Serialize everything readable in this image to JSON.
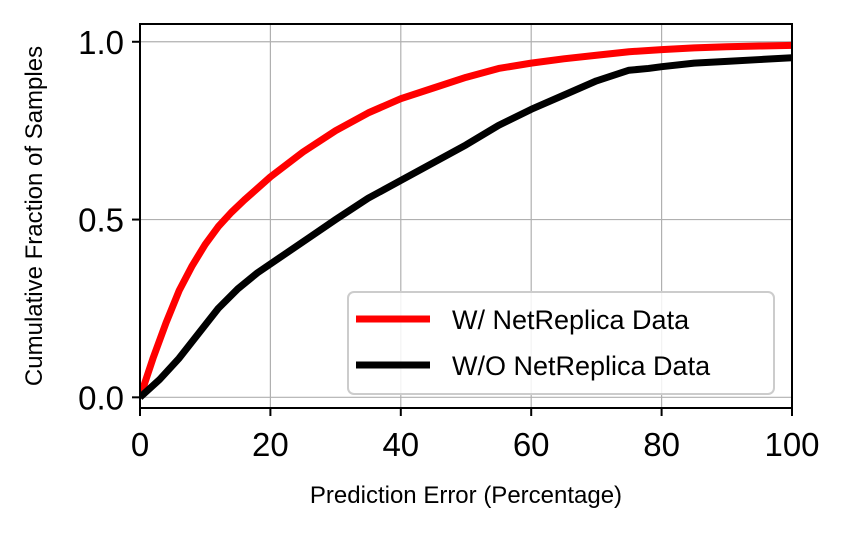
{
  "chart_data": {
    "type": "line",
    "title": "",
    "xlabel": "Prediction Error (Percentage)",
    "ylabel": "Cumulative Fraction of Samples",
    "xlim": [
      0,
      100
    ],
    "ylim": [
      -0.03,
      1.05
    ],
    "xticks": [
      0,
      20,
      40,
      60,
      80,
      100
    ],
    "xtick_labels": [
      "0",
      "20",
      "40",
      "60",
      "80",
      "100"
    ],
    "yticks": [
      0.0,
      0.5,
      1.0
    ],
    "ytick_labels": [
      "0.0",
      "0.5",
      "1.0"
    ],
    "grid": true,
    "legend_position": "lower-right",
    "series": [
      {
        "name": "W/ NetReplica Data",
        "color": "#ff0000",
        "x": [
          0,
          2,
          4,
          6,
          8,
          10,
          12,
          14,
          16,
          20,
          25,
          30,
          35,
          40,
          45,
          50,
          55,
          60,
          65,
          70,
          75,
          80,
          85,
          90,
          95,
          100
        ],
        "y": [
          0.0,
          0.11,
          0.21,
          0.3,
          0.37,
          0.43,
          0.48,
          0.52,
          0.555,
          0.62,
          0.69,
          0.75,
          0.8,
          0.84,
          0.87,
          0.9,
          0.925,
          0.94,
          0.952,
          0.962,
          0.972,
          0.978,
          0.983,
          0.986,
          0.988,
          0.99
        ]
      },
      {
        "name": "W/O NetReplica Data",
        "color": "#000000",
        "x": [
          0,
          3,
          6,
          9,
          12,
          15,
          18,
          22,
          26,
          30,
          35,
          40,
          45,
          50,
          55,
          60,
          65,
          70,
          75,
          78,
          80,
          85,
          90,
          95,
          100
        ],
        "y": [
          0.0,
          0.05,
          0.11,
          0.18,
          0.25,
          0.305,
          0.35,
          0.4,
          0.45,
          0.5,
          0.56,
          0.61,
          0.66,
          0.71,
          0.765,
          0.81,
          0.85,
          0.89,
          0.92,
          0.925,
          0.93,
          0.94,
          0.945,
          0.95,
          0.955
        ]
      }
    ]
  }
}
